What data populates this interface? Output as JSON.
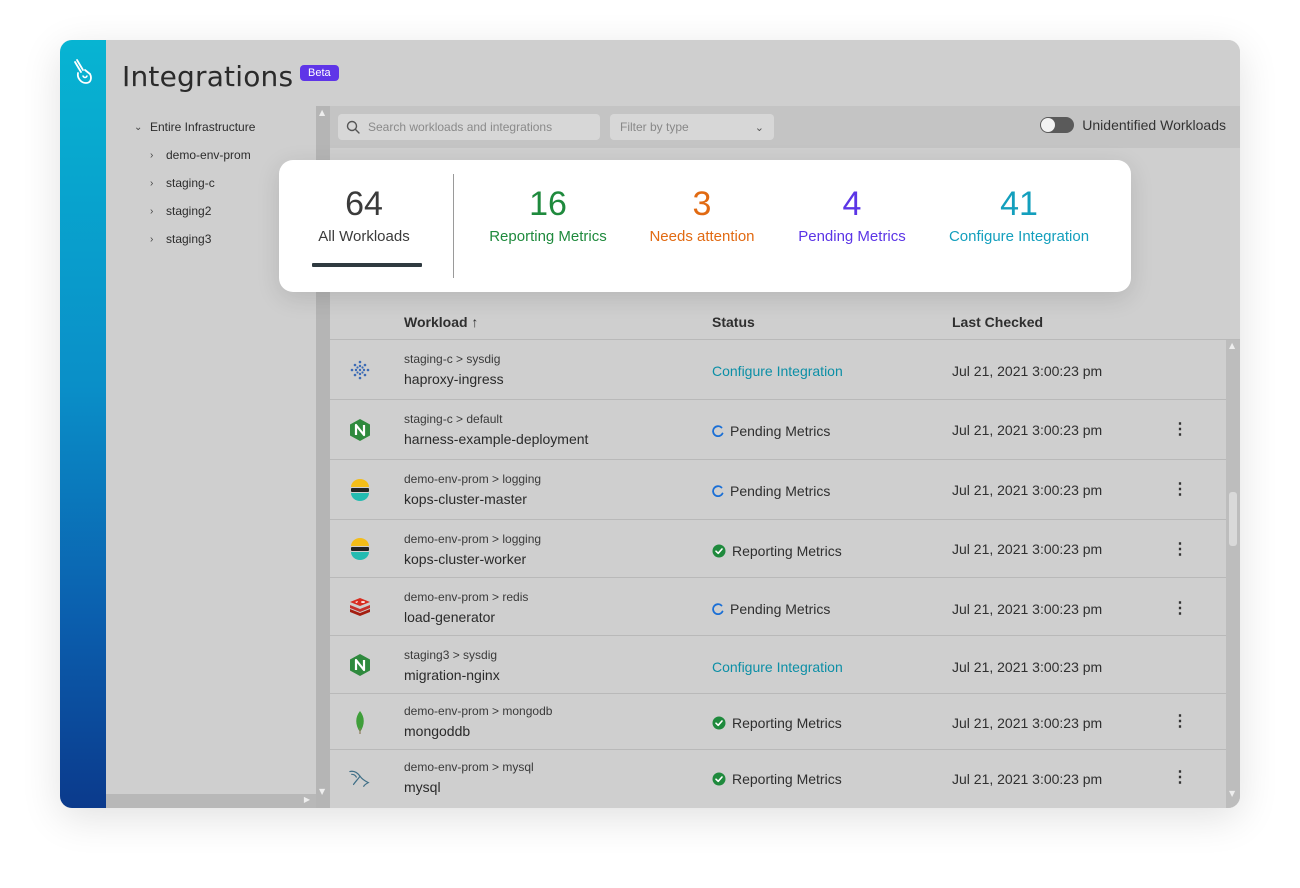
{
  "header": {
    "title": "Integrations",
    "badge": "Beta"
  },
  "tree": {
    "root": "Entire Infrastructure",
    "items": [
      "demo-env-prom",
      "staging-c",
      "staging2",
      "staging3"
    ]
  },
  "toolbar": {
    "search_placeholder": "Search workloads and integrations",
    "filter_label": "Filter by type",
    "toggle_label": "Unidentified Workloads"
  },
  "summary": {
    "all": {
      "value": "64",
      "label": "All Workloads",
      "color": "#3b3b3b"
    },
    "reporting": {
      "value": "16",
      "label": "Reporting Metrics",
      "color": "#1f8a3d"
    },
    "attention": {
      "value": "3",
      "label": "Needs attention",
      "color": "#e16a12"
    },
    "pending": {
      "value": "4",
      "label": "Pending Metrics",
      "color": "#5b35e6"
    },
    "configure": {
      "value": "41",
      "label": "Configure Integration",
      "color": "#139fbd"
    }
  },
  "table": {
    "columns": {
      "workload": "Workload ↑",
      "status": "Status",
      "last_checked": "Last Checked"
    },
    "rows": [
      {
        "icon": "sysdig-icon",
        "path": "staging-c > sysdig",
        "name": "haproxy-ingress",
        "status": "Configure Integration",
        "status_type": "configure",
        "checked": "Jul 21, 2021 3:00:23 pm",
        "menu": false
      },
      {
        "icon": "nginx-icon",
        "path": "staging-c > default",
        "name": "harness-example-deployment",
        "status": "Pending Metrics",
        "status_type": "pending",
        "checked": "Jul 21, 2021 3:00:23 pm",
        "menu": true
      },
      {
        "icon": "elastic-icon",
        "path": "demo-env-prom > logging",
        "name": "kops-cluster-master",
        "status": "Pending Metrics",
        "status_type": "pending",
        "checked": "Jul 21, 2021 3:00:23 pm",
        "menu": true
      },
      {
        "icon": "elastic-icon",
        "path": "demo-env-prom > logging",
        "name": "kops-cluster-worker",
        "status": "Reporting Metrics",
        "status_type": "reporting",
        "checked": "Jul 21, 2021 3:00:23 pm",
        "menu": true
      },
      {
        "icon": "redis-icon",
        "path": "demo-env-prom > redis",
        "name": "load-generator",
        "status": "Pending Metrics",
        "status_type": "pending",
        "checked": "Jul 21, 2021 3:00:23 pm",
        "menu": true
      },
      {
        "icon": "nginx-icon",
        "path": "staging3 > sysdig",
        "name": "migration-nginx",
        "status": "Configure Integration",
        "status_type": "configure",
        "checked": "Jul 21, 2021 3:00:23 pm",
        "menu": false
      },
      {
        "icon": "mongodb-icon",
        "path": "demo-env-prom > mongodb",
        "name": "mongoddb",
        "status": "Reporting Metrics",
        "status_type": "reporting",
        "checked": "Jul 21, 2021 3:00:23 pm",
        "menu": true
      },
      {
        "icon": "mysql-icon",
        "path": "demo-env-prom > mysql",
        "name": "mysql",
        "status": "Reporting Metrics",
        "status_type": "reporting",
        "checked": "Jul 21, 2021 3:00:23 pm",
        "menu": true
      }
    ]
  },
  "colors": {
    "accent_link": "#0c8fa6",
    "beta_badge": "#5f35e8",
    "ok_green": "#1f8a3d",
    "pending_blue": "#1a6fd6"
  }
}
